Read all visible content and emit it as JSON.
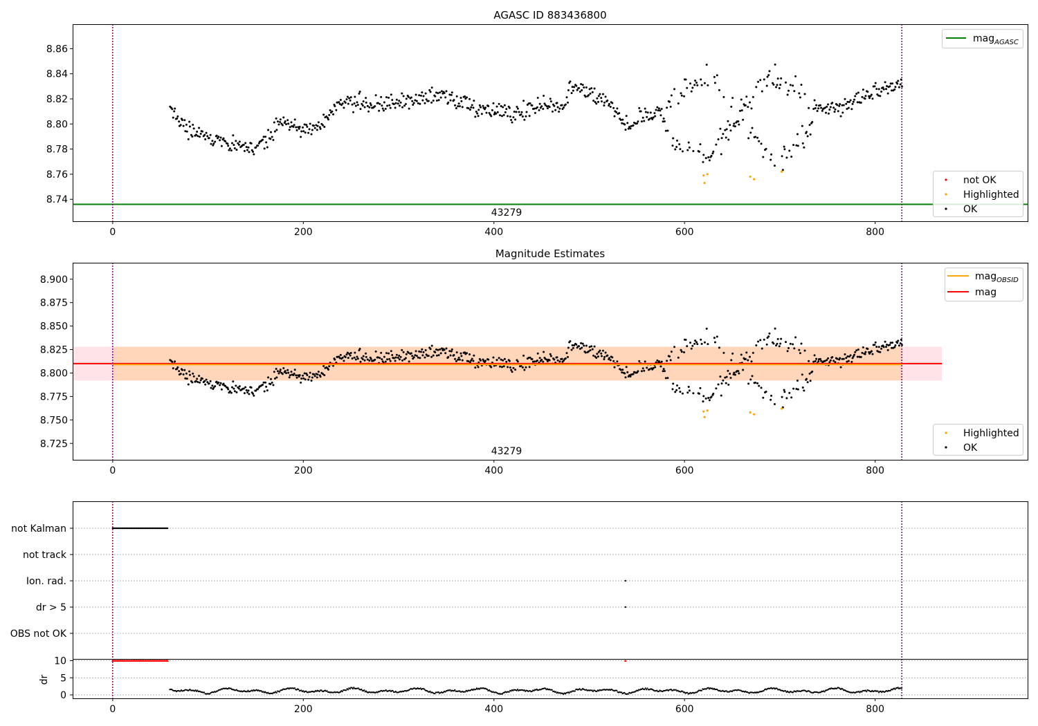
{
  "figure_texts": {
    "obsid_label": "43279"
  },
  "colors": {
    "ok": "#000000",
    "highlighted": "#ffa500",
    "not_ok": "#ff0000",
    "agasc": "#008000",
    "obsid_mag": "#ffa500",
    "mag": "#ff0000",
    "obs_boundary": "#800080"
  },
  "chart_data": [
    {
      "type": "scatter",
      "title": "AGASC ID 883436800",
      "xlim": [
        -42,
        960
      ],
      "ylim": [
        8.7225,
        8.8795
      ],
      "x_ticks": [
        0,
        200,
        400,
        600,
        800
      ],
      "y_ticks": [
        8.74,
        8.76,
        8.78,
        8.8,
        8.82,
        8.84,
        8.86
      ],
      "y_tick_labels": [
        "8.74",
        "8.76",
        "8.78",
        "8.80",
        "8.82",
        "8.84",
        "8.86"
      ],
      "obs_boundaries": [
        0,
        828
      ],
      "obsid_label": "43279",
      "agasc_mag": 8.736,
      "x_range": [
        60,
        828
      ],
      "legend_lines": [
        {
          "name": "mag",
          "sub": "AGASC",
          "color": "#008000"
        }
      ],
      "legend_lines_position": "top-right",
      "legend_points": [
        "not OK",
        "Highlighted",
        "OK"
      ],
      "legend_points_position": "lower-right",
      "highlighted_points": [
        [
          620,
          8.759
        ],
        [
          621,
          8.753
        ],
        [
          624,
          8.76
        ],
        [
          669,
          8.758
        ],
        [
          673,
          8.756
        ],
        [
          702,
          8.762
        ]
      ],
      "not_ok_points": []
    },
    {
      "type": "scatter",
      "title": "Magnitude Estimates",
      "xlim": [
        -42,
        960
      ],
      "ylim": [
        8.7075,
        8.9175
      ],
      "x_ticks": [
        0,
        200,
        400,
        600,
        800
      ],
      "y_ticks": [
        8.725,
        8.75,
        8.775,
        8.8,
        8.825,
        8.85,
        8.875,
        8.9
      ],
      "y_tick_labels": [
        "8.725",
        "8.750",
        "8.775",
        "8.800",
        "8.825",
        "8.850",
        "8.875",
        "8.900"
      ],
      "obs_boundaries": [
        0,
        828
      ],
      "obsid_label": "43279",
      "mag": 8.81,
      "mag_band": [
        8.792,
        8.828
      ],
      "mag_x_range": [
        -42,
        870
      ],
      "obsid_mag": 8.809,
      "obsid_band": [
        8.792,
        8.828
      ],
      "obsid_x_range": [
        0,
        828
      ],
      "legend_lines": [
        {
          "name": "mag",
          "sub": "OBSID",
          "color": "#ffa500"
        },
        {
          "name": "mag",
          "sub": "",
          "color": "#ff0000"
        }
      ],
      "legend_lines_position": "top-right",
      "legend_points": [
        "Highlighted",
        "OK"
      ],
      "legend_points_position": "lower-right",
      "highlighted_points": [
        [
          620,
          8.759
        ],
        [
          621,
          8.753
        ],
        [
          624,
          8.76
        ],
        [
          669,
          8.758
        ],
        [
          673,
          8.756
        ],
        [
          702,
          8.762
        ]
      ]
    },
    {
      "type": "scatter",
      "title": "",
      "xlim": [
        -42,
        960
      ],
      "x_ticks": [
        0,
        200,
        400,
        600,
        800
      ],
      "obs_boundaries": [
        0,
        828
      ],
      "flag_categories": [
        "not Kalman",
        "not track",
        "Ion. rad.",
        "dr > 5",
        "OBS not OK"
      ],
      "flag_spans": [
        {
          "flag": "not Kalman",
          "x_range": [
            0,
            58
          ]
        }
      ],
      "flag_points": [
        {
          "flag": "Ion. rad.",
          "x": 538
        },
        {
          "flag": "dr > 5",
          "x": 538
        }
      ],
      "dr_ylabel": "dr",
      "dr_ylim": [
        -1,
        10.5
      ],
      "dr_ticks": [
        0,
        5,
        10
      ],
      "dr_tick_labels": [
        "0",
        "5",
        "10"
      ],
      "dr_clipped_points": {
        "x_range": [
          0,
          58
        ],
        "x_extra": [
          538
        ],
        "value": 10
      },
      "dr_typical_range": [
        0.3,
        2.4
      ]
    }
  ]
}
